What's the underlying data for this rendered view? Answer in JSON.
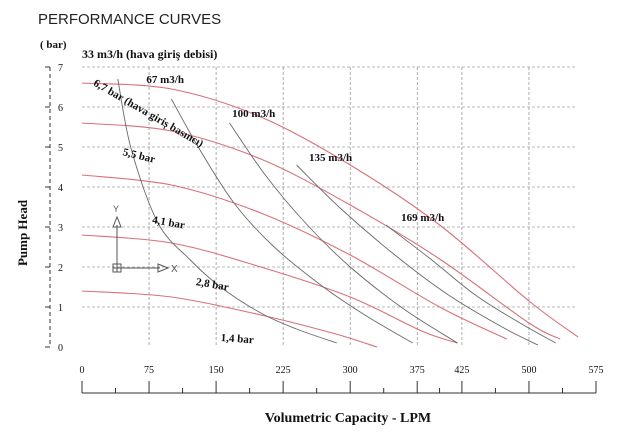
{
  "chart_data": {
    "type": "line",
    "title": "PERFORMANCE CURVES",
    "unit_label": "( bar)",
    "ylabel": "Pump Head",
    "xlabel": "Volumetric Capacity - LPM",
    "xlim": [
      0,
      575
    ],
    "ylim": [
      0,
      7
    ],
    "x_ticks": [
      "0",
      "75",
      "150",
      "225",
      "300",
      "375",
      "425",
      "500",
      "575"
    ],
    "y_ticks": [
      "0",
      "1",
      "2",
      "3",
      "4",
      "5",
      "6",
      "7"
    ],
    "grid": true,
    "top_annotation": "33 m3/h (hava giriş debisi)",
    "pressure_series": [
      {
        "name": "6,7 bar (hava giriş basıncı)",
        "x": [
          0,
          100,
          200,
          300,
          400,
          500,
          555
        ],
        "y": [
          6.6,
          6.45,
          5.75,
          4.55,
          3.05,
          1.15,
          0.25
        ]
      },
      {
        "name": "5,5 bar",
        "x": [
          0,
          100,
          200,
          300,
          400,
          500,
          535
        ],
        "y": [
          5.6,
          5.4,
          4.7,
          3.55,
          2.2,
          0.6,
          0.2
        ]
      },
      {
        "name": "4,1 bar",
        "x": [
          0,
          100,
          200,
          300,
          400,
          475
        ],
        "y": [
          4.3,
          4.05,
          3.35,
          2.3,
          1.0,
          0.2
        ]
      },
      {
        "name": "2,8 bar",
        "x": [
          0,
          100,
          200,
          300,
          380,
          420
        ],
        "y": [
          2.8,
          2.6,
          2.0,
          1.25,
          0.4,
          0.1
        ]
      },
      {
        "name": "1,4 bar",
        "x": [
          0,
          100,
          200,
          280,
          330
        ],
        "y": [
          1.4,
          1.25,
          0.8,
          0.35,
          0.0
        ]
      }
    ],
    "air_consumption_series": [
      {
        "name": "33 m3/h",
        "x": [
          40,
          55,
          85,
          120,
          155,
          200,
          240,
          285
        ],
        "y": [
          6.7,
          4.95,
          3.1,
          2.2,
          1.5,
          0.85,
          0.45,
          0.1
        ]
      },
      {
        "name": "67 m3/h",
        "x": [
          100,
          130,
          170,
          215,
          270,
          320,
          370
        ],
        "y": [
          6.2,
          5.0,
          3.6,
          2.5,
          1.5,
          0.75,
          0.1
        ]
      },
      {
        "name": "100 m3/h",
        "x": [
          165,
          205,
          250,
          300,
          360,
          420
        ],
        "y": [
          5.6,
          4.3,
          3.1,
          2.0,
          0.95,
          0.1
        ]
      },
      {
        "name": "135 m3/h",
        "x": [
          240,
          290,
          350,
          410,
          470,
          510
        ],
        "y": [
          4.55,
          3.45,
          2.3,
          1.3,
          0.5,
          0.05
        ]
      },
      {
        "name": "169 m3/h",
        "x": [
          340,
          390,
          440,
          490,
          530
        ],
        "y": [
          3.05,
          2.2,
          1.3,
          0.6,
          0.1
        ]
      }
    ],
    "curve_labels": [
      {
        "text": "6,7 bar (hava giriş basıncı)",
        "x": 12,
        "y": 6.55,
        "angle": 30
      },
      {
        "text": "5,5 bar",
        "x": 45,
        "y": 4.8,
        "angle": 14
      },
      {
        "text": "4,1 bar",
        "x": 78,
        "y": 3.1,
        "angle": 10
      },
      {
        "text": "2,8 bar",
        "x": 127,
        "y": 1.55,
        "angle": 10
      },
      {
        "text": "1,4 bar",
        "x": 155,
        "y": 0.15,
        "angle": 4
      },
      {
        "text": "67 m3/h",
        "x": 72,
        "y": 6.6,
        "angle": 0
      },
      {
        "text": "100 m3/h",
        "x": 168,
        "y": 5.75,
        "angle": 0
      },
      {
        "text": "135 m3/h",
        "x": 254,
        "y": 4.65,
        "angle": 0
      },
      {
        "text": "169 m3/h",
        "x": 357,
        "y": 3.15,
        "angle": 0
      }
    ],
    "colors": {
      "pressure": "#d9707a",
      "air": "#6a6a6a",
      "grid": "#777777",
      "text": "#111111"
    }
  }
}
